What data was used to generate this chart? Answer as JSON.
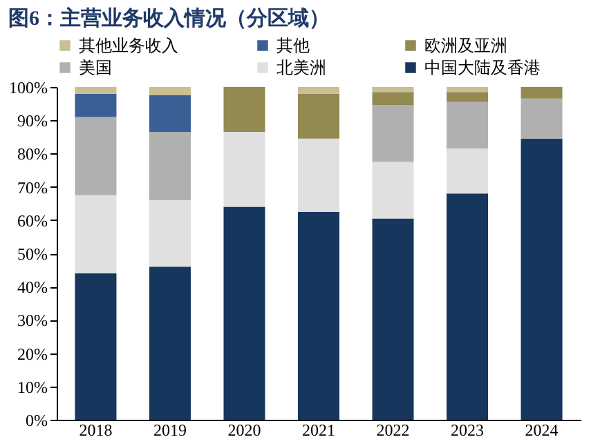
{
  "chart_data": {
    "type": "bar",
    "stacked": true,
    "title": "图6：主营业务收入情况（分区域）",
    "categories": [
      "2018",
      "2019",
      "2020",
      "2021",
      "2022",
      "2023",
      "2024"
    ],
    "series": [
      {
        "name": "中国大陆及香港",
        "color": "#17365d",
        "values": [
          44,
          46,
          64,
          62.5,
          60.5,
          68,
          84.5
        ]
      },
      {
        "name": "北美洲",
        "color": "#e0e0e0",
        "values": [
          23.5,
          20,
          22.5,
          22,
          17,
          13.5,
          0
        ]
      },
      {
        "name": "美国",
        "color": "#b0b0b0",
        "values": [
          23.5,
          20.5,
          0,
          0,
          17,
          14,
          12
        ]
      },
      {
        "name": "欧洲及亚洲",
        "color": "#938a52",
        "values": [
          0,
          0,
          13.5,
          13.5,
          4,
          3,
          3.5
        ]
      },
      {
        "name": "其他",
        "color": "#3a5f94",
        "values": [
          7,
          11,
          0,
          0,
          0,
          0,
          0
        ]
      },
      {
        "name": "其他业务收入",
        "color": "#c8bf92",
        "values": [
          2,
          2.5,
          0,
          2,
          1.5,
          1.5,
          0
        ]
      }
    ],
    "ylim": [
      0,
      100
    ],
    "yticks": [
      {
        "value": 0,
        "label": "0%"
      },
      {
        "value": 10,
        "label": "10%"
      },
      {
        "value": 20,
        "label": "20%"
      },
      {
        "value": 30,
        "label": "30%"
      },
      {
        "value": 40,
        "label": "40%"
      },
      {
        "value": 50,
        "label": "50%"
      },
      {
        "value": 60,
        "label": "60%"
      },
      {
        "value": 70,
        "label": "70%"
      },
      {
        "value": 80,
        "label": "80%"
      },
      {
        "value": 90,
        "label": "90%"
      },
      {
        "value": 100,
        "label": "100%"
      }
    ],
    "grid": false,
    "legend": "top"
  }
}
